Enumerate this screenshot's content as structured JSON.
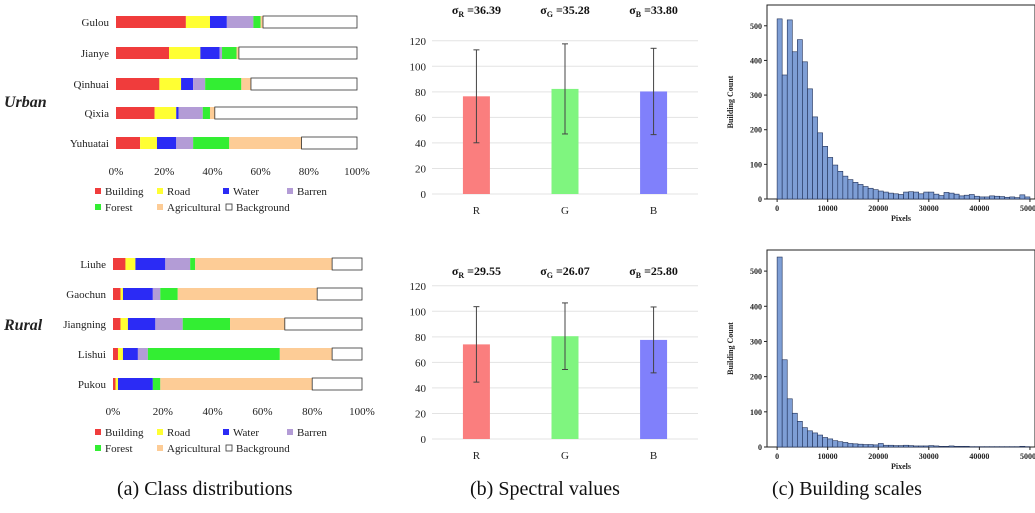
{
  "colors": {
    "building": "#f03c3c",
    "road": "#ffff33",
    "water": "#2b2bf5",
    "barren": "#b39cd6",
    "forest": "#33ee33",
    "agricultural": "#fdcc96",
    "background": "#ffffff",
    "spec_r": "#fa7e7e",
    "spec_g": "#7ff57f",
    "spec_b": "#8080fb",
    "hist": "#7e9ed5"
  },
  "row_labels": {
    "urban": "Urban",
    "rural": "Rural"
  },
  "captions": {
    "a": "(a) Class distributions",
    "b": "(b) Spectral values",
    "c": "(c) Building scales"
  },
  "legend": {
    "building": "Building",
    "road": "Road",
    "water": "Water",
    "barren": "Barren",
    "forest": "Forest",
    "agricultural": "Agricultural",
    "background": "Background"
  },
  "chart_data": [
    {
      "id": "urban-class",
      "type": "bar",
      "orientation": "horizontal",
      "stacked": true,
      "categories": [
        "Gulou",
        "Jianye",
        "Qinhuai",
        "Qixia",
        "Yuhuatai"
      ],
      "series": [
        {
          "name": "Building",
          "key": "building",
          "values": [
            29,
            22,
            18,
            16,
            10
          ]
        },
        {
          "name": "Road",
          "key": "road",
          "values": [
            10,
            13,
            9,
            9,
            7
          ]
        },
        {
          "name": "Water",
          "key": "water",
          "values": [
            7,
            8,
            5,
            1,
            8
          ]
        },
        {
          "name": "Barren",
          "key": "barren",
          "values": [
            11,
            1,
            5,
            10,
            7
          ]
        },
        {
          "name": "Forest",
          "key": "forest",
          "values": [
            3,
            6,
            15,
            3,
            15
          ]
        },
        {
          "name": "Agricultural",
          "key": "agricultural",
          "values": [
            1,
            1,
            4,
            2,
            30
          ]
        },
        {
          "name": "Background",
          "key": "background",
          "values": [
            39,
            49,
            44,
            59,
            23
          ]
        }
      ],
      "xticks": [
        "0%",
        "20%",
        "40%",
        "60%",
        "80%",
        "100%"
      ],
      "xlim": [
        0,
        100
      ]
    },
    {
      "id": "rural-class",
      "type": "bar",
      "orientation": "horizontal",
      "stacked": true,
      "categories": [
        "Liuhe",
        "Gaochun",
        "Jiangning",
        "Lishui",
        "Pukou"
      ],
      "series": [
        {
          "name": "Building",
          "key": "building",
          "values": [
            5,
            3,
            3,
            2,
            1
          ]
        },
        {
          "name": "Road",
          "key": "road",
          "values": [
            4,
            1,
            3,
            2,
            1
          ]
        },
        {
          "name": "Water",
          "key": "water",
          "values": [
            12,
            12,
            11,
            6,
            14
          ]
        },
        {
          "name": "Barren",
          "key": "barren",
          "values": [
            10,
            3,
            11,
            4,
            0
          ]
        },
        {
          "name": "Forest",
          "key": "forest",
          "values": [
            2,
            7,
            19,
            53,
            3
          ]
        },
        {
          "name": "Agricultural",
          "key": "agricultural",
          "values": [
            55,
            56,
            22,
            21,
            61
          ]
        },
        {
          "name": "Background",
          "key": "background",
          "values": [
            12,
            18,
            31,
            12,
            20
          ]
        }
      ],
      "xticks": [
        "0%",
        "20%",
        "40%",
        "60%",
        "80%",
        "100%"
      ],
      "xlim": [
        0,
        100
      ]
    },
    {
      "id": "urban-spectral",
      "type": "bar",
      "categories": [
        "R",
        "G",
        "B"
      ],
      "values": [
        76.5,
        82.3,
        80.3
      ],
      "errors": [
        36.39,
        35.28,
        33.8
      ],
      "sigma_labels": [
        "36.39",
        "35.28",
        "33.80"
      ],
      "sigma_subs": [
        "R",
        "G",
        "B"
      ],
      "ylim": [
        0,
        130
      ],
      "yticks": [
        0,
        20,
        40,
        60,
        80,
        100,
        120
      ]
    },
    {
      "id": "rural-spectral",
      "type": "bar",
      "categories": [
        "R",
        "G",
        "B"
      ],
      "values": [
        74.1,
        80.5,
        77.6
      ],
      "errors": [
        29.55,
        26.07,
        25.8
      ],
      "sigma_labels": [
        "29.55",
        "26.07",
        "25.80"
      ],
      "sigma_subs": [
        "R",
        "G",
        "B"
      ],
      "ylim": [
        0,
        130
      ],
      "yticks": [
        0,
        20,
        40,
        60,
        80,
        100,
        120
      ]
    },
    {
      "id": "urban-hist",
      "type": "bar",
      "histogram": true,
      "bin_start": 0,
      "bin_width": 1000,
      "values": [
        520,
        358,
        517,
        425,
        460,
        396,
        318,
        237,
        191,
        152,
        120,
        98,
        80,
        66,
        56,
        48,
        42,
        36,
        31,
        27,
        23,
        20,
        17,
        15,
        13,
        20,
        21,
        20,
        15,
        20,
        20,
        14,
        10,
        19,
        17,
        14,
        9,
        11,
        13,
        8,
        6,
        6,
        9,
        8,
        7,
        5,
        6,
        4,
        12,
        6
      ],
      "xlabel": "Pixels",
      "ylabel": "Building Count",
      "ylim": [
        0,
        560
      ],
      "xlim": [
        -2000,
        51000
      ],
      "yticks": [
        0,
        100,
        200,
        300,
        400,
        500
      ],
      "xticks": [
        0,
        10000,
        20000,
        30000,
        40000,
        50000
      ]
    },
    {
      "id": "rural-hist",
      "type": "bar",
      "histogram": true,
      "bin_start": 0,
      "bin_width": 1000,
      "values": [
        540,
        248,
        137,
        96,
        73,
        55,
        46,
        40,
        34,
        27,
        23,
        18,
        15,
        13,
        10,
        9,
        8,
        7,
        7,
        6,
        10,
        5,
        5,
        4,
        4,
        5,
        4,
        3,
        3,
        3,
        4,
        3,
        2,
        2,
        3,
        2,
        2,
        2,
        1,
        1,
        1,
        1,
        1,
        1,
        1,
        1,
        1,
        1,
        2,
        1
      ],
      "xlabel": "Pixels",
      "ylabel": "Building Count",
      "ylim": [
        0,
        560
      ],
      "xlim": [
        -2000,
        51000
      ],
      "yticks": [
        0,
        100,
        200,
        300,
        400,
        500
      ],
      "xticks": [
        0,
        10000,
        20000,
        30000,
        40000,
        50000
      ]
    }
  ]
}
